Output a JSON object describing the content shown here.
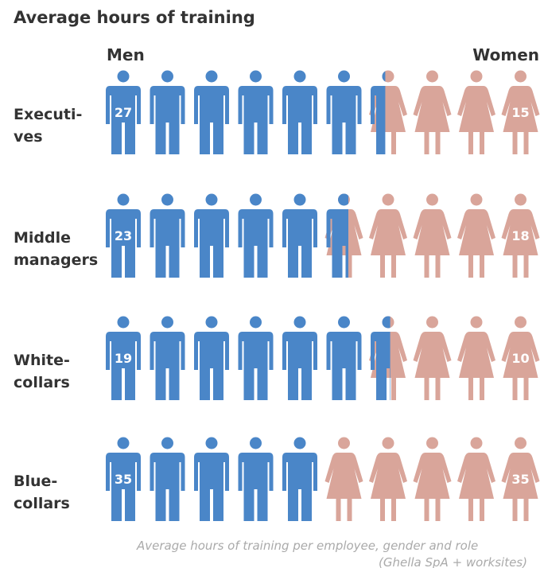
{
  "chart_data": {
    "type": "pictogram",
    "title": "Average hours of training",
    "categories": [
      [
        "Executi-",
        "ves"
      ],
      [
        "Middle",
        "managers"
      ],
      [
        "White-",
        "collars"
      ],
      [
        "Blue-",
        "collars"
      ]
    ],
    "series": [
      {
        "name": "Men",
        "color": "#4a86c8",
        "values": [
          27,
          23,
          19,
          35
        ]
      },
      {
        "name": "Women",
        "color": "#d9a59a",
        "values": [
          15,
          18,
          10,
          35
        ]
      }
    ],
    "icons_per_row": 10,
    "note": [
      "Average hours of training per employee, gender and role",
      "(Ghella SpA + worksites)"
    ]
  }
}
